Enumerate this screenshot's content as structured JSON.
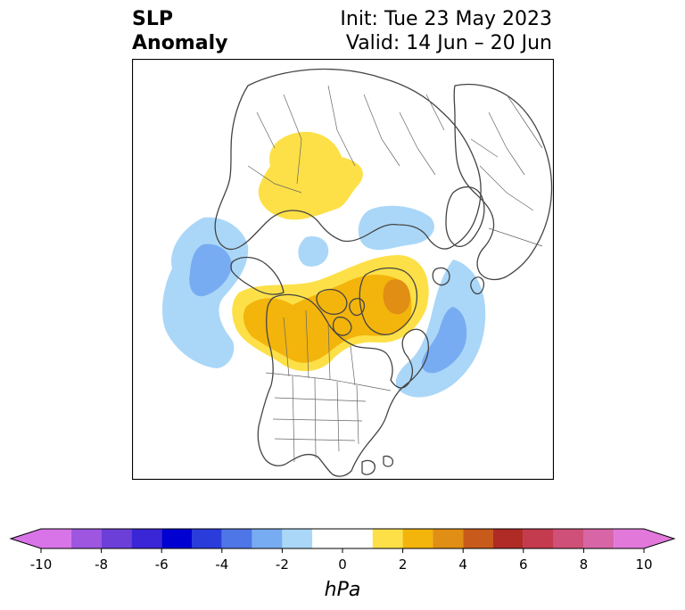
{
  "title": {
    "line1": "SLP",
    "line2": "Anomaly"
  },
  "init_label": "Init: Tue 23 May 2023",
  "valid_label": "Valid: 14 Jun – 20 Jun",
  "colorbar": {
    "unit": "hPa",
    "ticks": [
      "-10",
      "-8",
      "-6",
      "-4",
      "-2",
      "0",
      "2",
      "4",
      "6",
      "8",
      "10"
    ],
    "levels": [
      -10,
      -9,
      -8,
      -7,
      -6,
      -5,
      -4,
      -3,
      -2,
      -1,
      1,
      2,
      3,
      4,
      5,
      6,
      7,
      8,
      9,
      10
    ],
    "colors": [
      "#d874e8",
      "#9e56e0",
      "#6c3fd9",
      "#3a26d6",
      "#0000d2",
      "#2a3ddb",
      "#4f76e6",
      "#78acf2",
      "#aad7f8",
      "#ffffff",
      "#fde047",
      "#f3b40c",
      "#e08e14",
      "#c85a1c",
      "#b02a26",
      "#c43a4e",
      "#cf5078",
      "#d865a6",
      "#e278da"
    ],
    "extend_low_color": "#d874e8",
    "extend_high_color": "#e278da"
  },
  "anomalies": [
    {
      "label": "positive-siberia",
      "level": 1.5,
      "color": "#fde047"
    },
    {
      "label": "negative-north-pacific",
      "level": -1.5,
      "color": "#aad7f8"
    },
    {
      "label": "negative-north-pacific-core",
      "level": -3.5,
      "color": "#78acf2"
    },
    {
      "label": "positive-canada-greenland",
      "level": 1.5,
      "color": "#fde047"
    },
    {
      "label": "positive-canada-greenland-mid",
      "level": 2.5,
      "color": "#f3b40c"
    },
    {
      "label": "positive-greenland-core",
      "level": 3.5,
      "color": "#e08e14"
    },
    {
      "label": "negative-north-atlantic",
      "level": -1.5,
      "color": "#aad7f8"
    },
    {
      "label": "negative-north-atlantic-core",
      "level": -3.5,
      "color": "#78acf2"
    },
    {
      "label": "negative-arctic",
      "level": -1.5,
      "color": "#aad7f8"
    }
  ]
}
